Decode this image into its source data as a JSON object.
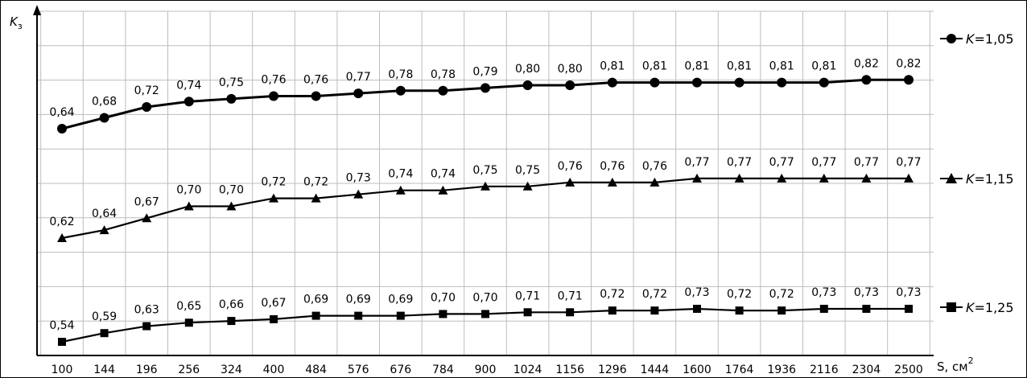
{
  "chart_data": {
    "type": "line",
    "ylabel_main": "K",
    "ylabel_sub": "з",
    "xlabel_main": "S, см",
    "xlabel_sup": "2",
    "grid": true,
    "legend_position": "right",
    "categories": [
      "100",
      "144",
      "196",
      "256",
      "324",
      "400",
      "484",
      "576",
      "676",
      "784",
      "900",
      "1024",
      "1156",
      "1296",
      "1444",
      "1600",
      "1764",
      "1936",
      "2116",
      "2304",
      "2500"
    ],
    "series": [
      {
        "name_k": "K",
        "name_val": "=1,05",
        "marker": "circle",
        "values": [
          0.64,
          0.68,
          0.72,
          0.74,
          0.75,
          0.76,
          0.76,
          0.77,
          0.78,
          0.78,
          0.79,
          0.8,
          0.8,
          0.81,
          0.81,
          0.81,
          0.81,
          0.81,
          0.81,
          0.82,
          0.82
        ],
        "labels": [
          "0,64",
          "0,68",
          "0,72",
          "0,74",
          "0,75",
          "0,76",
          "0,76",
          "0,77",
          "0,78",
          "0,78",
          "0,79",
          "0,80",
          "0,80",
          "0,81",
          "0,81",
          "0,81",
          "0,81",
          "0,81",
          "0,81",
          "0,82",
          "0,82"
        ]
      },
      {
        "name_k": "K",
        "name_val": "=1,15",
        "marker": "triangle",
        "values": [
          0.62,
          0.64,
          0.67,
          0.7,
          0.7,
          0.72,
          0.72,
          0.73,
          0.74,
          0.74,
          0.75,
          0.75,
          0.76,
          0.76,
          0.76,
          0.77,
          0.77,
          0.77,
          0.77,
          0.77,
          0.77
        ],
        "labels": [
          "0,62",
          "0,64",
          "0,67",
          "0,70",
          "0,70",
          "0,72",
          "0,72",
          "0,73",
          "0,74",
          "0,74",
          "0,75",
          "0,75",
          "0,76",
          "0,76",
          "0,76",
          "0,77",
          "0,77",
          "0,77",
          "0,77",
          "0,77",
          "0,77"
        ]
      },
      {
        "name_k": "K",
        "name_val": "=1,25",
        "marker": "square",
        "values": [
          0.54,
          0.59,
          0.63,
          0.65,
          0.66,
          0.67,
          0.69,
          0.69,
          0.69,
          0.7,
          0.7,
          0.71,
          0.71,
          0.72,
          0.72,
          0.73,
          0.72,
          0.72,
          0.73,
          0.73,
          0.73
        ],
        "labels": [
          "0,54",
          "0,59",
          "0,63",
          "0,65",
          "0,66",
          "0,67",
          "0,69",
          "0,69",
          "0,69",
          "0,70",
          "0,70",
          "0,71",
          "0,71",
          "0,72",
          "0,72",
          "0,73",
          "0,72",
          "0,72",
          "0,73",
          "0,73",
          "0,73"
        ]
      }
    ]
  }
}
